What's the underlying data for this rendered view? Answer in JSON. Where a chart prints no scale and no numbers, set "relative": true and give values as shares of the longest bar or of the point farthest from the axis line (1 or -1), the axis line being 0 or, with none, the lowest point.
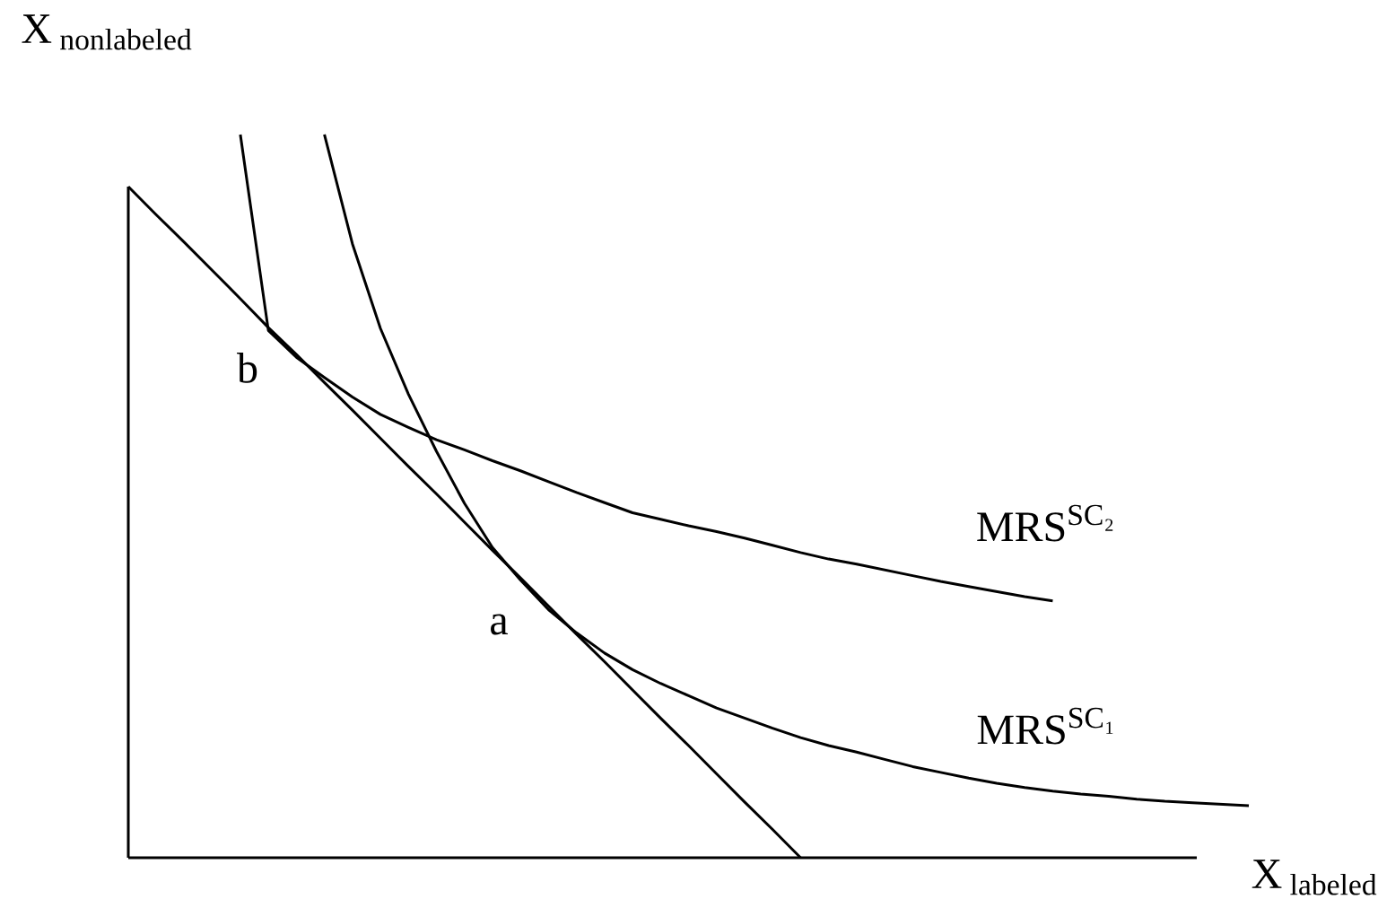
{
  "chart_data": {
    "type": "line",
    "relative": true,
    "xlabel": "\\mathrm{X}\\,_{\\mathrm{labeled}}",
    "ylabel": "\\mathrm{X}\\,_{\\mathrm{nonlabeled}}",
    "categories": [
      null,
      null,
      null,
      null,
      null,
      null,
      null,
      null,
      null,
      null,
      null,
      null,
      null,
      null,
      null,
      null,
      null,
      null,
      null,
      null,
      null,
      null,
      null,
      null,
      null,
      null,
      null,
      null,
      null,
      null,
      null,
      null,
      null,
      null,
      null,
      null,
      null,
      null,
      null,
      null,
      null
    ],
    "series": [
      {
        "color": "#000000",
        "values": [
          0.928,
          0.889,
          0.851,
          0.812,
          0.773,
          0.733,
          0.696,
          0.657,
          0.619,
          0.58,
          0.541,
          0.503,
          0.464,
          0.425,
          0.387,
          0.348,
          0.309,
          0.271,
          0.232,
          0.193,
          0.155,
          0.116,
          0.077,
          0.039,
          0,
          null,
          null,
          null,
          null,
          null,
          null,
          null,
          null,
          null,
          null,
          null,
          null,
          null,
          null,
          null,
          null
        ]
      },
      {
        "name": "MRS$^{SC₁}$",
        "color": "#000000",
        "values": [
          null,
          null,
          null,
          null,
          null,
          null,
          null,
          1.0,
          0.849,
          0.732,
          0.641,
          0.562,
          0.49,
          0.429,
          0.384,
          0.343,
          0.311,
          0.283,
          0.26,
          0.241,
          0.224,
          0.207,
          0.193,
          0.179,
          0.166,
          0.155,
          0.146,
          0.136,
          0.126,
          0.118,
          0.11,
          0.103,
          0.097,
          0.092,
          0.088,
          0.085,
          0.081,
          0.078,
          0.076,
          0.074,
          0.072
        ]
      },
      {
        "name": "MRS$^{SC₂}$",
        "color": "#000000",
        "values": [
          null,
          null,
          null,
          null,
          1.0,
          0.729,
          0.692,
          0.664,
          0.637,
          0.613,
          0.595,
          0.578,
          0.564,
          0.549,
          0.535,
          0.52,
          0.505,
          0.491,
          0.477,
          0.468,
          0.459,
          0.451,
          0.442,
          0.432,
          0.422,
          0.413,
          0.406,
          0.398,
          0.39,
          0.382,
          0.375,
          0.368,
          0.361,
          0.355,
          null,
          null,
          null,
          null,
          null,
          null,
          null
        ]
      }
    ],
    "annotations": [
      "a",
      "b"
    ]
  }
}
